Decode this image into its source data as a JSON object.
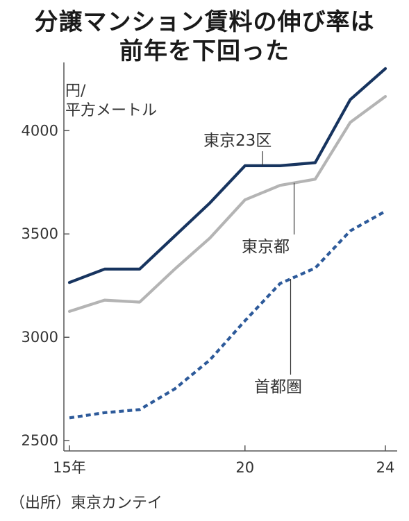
{
  "title_line1": "分譲マンション賃料の伸び率は",
  "title_line2": "前年を下回った",
  "unit_line1": "円/",
  "unit_line2": "平方メートル",
  "source": "（出所）東京カンテイ",
  "colors": {
    "tokyo23": "#17345f",
    "tokyo": "#b4b4b4",
    "shutoken": "#2d5a9a",
    "axis": "#555555"
  },
  "chart_data": {
    "type": "line",
    "title": "分譲マンション賃料の伸び率は前年を下回った",
    "ylabel": "円/平方メートル",
    "xlabel": "",
    "x": [
      2015,
      2016,
      2017,
      2018,
      2019,
      2020,
      2021,
      2022,
      2023,
      2024
    ],
    "xticks": [
      {
        "value": 2015,
        "label": "15年"
      },
      {
        "value": 2020,
        "label": "20"
      },
      {
        "value": 2024,
        "label": "24"
      }
    ],
    "yticks": [
      2500,
      3000,
      3500,
      4000
    ],
    "ylim": [
      2450,
      4330
    ],
    "grid": false,
    "series": [
      {
        "name": "東京23区",
        "style": "solid",
        "values": [
          3265,
          3330,
          3330,
          3490,
          3650,
          3830,
          3830,
          3845,
          4150,
          4300
        ]
      },
      {
        "name": "東京都",
        "style": "solid",
        "values": [
          3125,
          3180,
          3170,
          3330,
          3480,
          3665,
          3735,
          3765,
          4040,
          4165
        ]
      },
      {
        "name": "首都圏",
        "style": "dotted",
        "values": [
          2610,
          2635,
          2650,
          2750,
          2890,
          3080,
          3260,
          3335,
          3515,
          3610
        ]
      }
    ]
  }
}
